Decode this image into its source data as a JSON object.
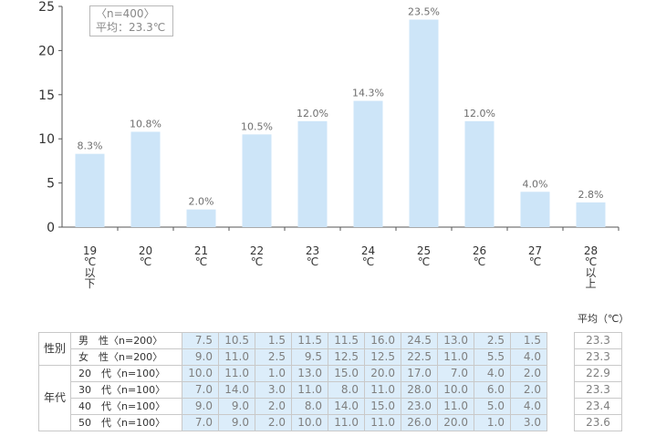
{
  "info": {
    "n_label": "〈n=400〉",
    "avg_label": "平均：23.3℃"
  },
  "chart_data": {
    "type": "bar",
    "categories": [
      "19 ℃ 以 下",
      "20 ℃",
      "21 ℃",
      "22 ℃",
      "23 ℃",
      "24 ℃",
      "25 ℃",
      "26 ℃",
      "27 ℃",
      "28 ℃ 以 上"
    ],
    "category_lines": [
      [
        "19",
        "℃",
        "以",
        "下"
      ],
      [
        "20",
        "℃"
      ],
      [
        "21",
        "℃"
      ],
      [
        "22",
        "℃"
      ],
      [
        "23",
        "℃"
      ],
      [
        "24",
        "℃"
      ],
      [
        "25",
        "℃"
      ],
      [
        "26",
        "℃"
      ],
      [
        "27",
        "℃"
      ],
      [
        "28",
        "℃",
        "以",
        "上"
      ]
    ],
    "values": [
      8.3,
      10.8,
      2.0,
      10.5,
      12.0,
      14.3,
      23.5,
      12.0,
      4.0,
      2.8
    ],
    "value_labels": [
      "8.3%",
      "10.8%",
      "2.0%",
      "10.5%",
      "12.0%",
      "14.3%",
      "23.5%",
      "12.0%",
      "4.0%",
      "2.8%"
    ],
    "y_ticks": [
      "0",
      "5",
      "10",
      "15",
      "20",
      "25"
    ],
    "ylim": [
      0,
      25
    ],
    "bar_color": "#cde5f8",
    "grid": false
  },
  "table": {
    "avg_header": "平均（℃）",
    "groups": [
      {
        "name": "性別",
        "rows": [
          {
            "label": "男　性〈n=200〉",
            "values": [
              "7.5",
              "10.5",
              "1.5",
              "11.5",
              "11.5",
              "16.0",
              "24.5",
              "13.0",
              "2.5",
              "1.5"
            ],
            "avg": "23.3"
          },
          {
            "label": "女　性〈n=200〉",
            "values": [
              "9.0",
              "11.0",
              "2.5",
              "9.5",
              "12.5",
              "12.5",
              "22.5",
              "11.0",
              "5.5",
              "4.0"
            ],
            "avg": "23.3"
          }
        ]
      },
      {
        "name": "年代",
        "rows": [
          {
            "label": "20　代〈n=100〉",
            "values": [
              "10.0",
              "11.0",
              "1.0",
              "13.0",
              "15.0",
              "20.0",
              "17.0",
              "7.0",
              "4.0",
              "2.0"
            ],
            "avg": "22.9"
          },
          {
            "label": "30　代〈n=100〉",
            "values": [
              "7.0",
              "14.0",
              "3.0",
              "11.0",
              "8.0",
              "11.0",
              "28.0",
              "10.0",
              "6.0",
              "2.0"
            ],
            "avg": "23.3"
          },
          {
            "label": "40　代〈n=100〉",
            "values": [
              "9.0",
              "9.0",
              "2.0",
              "8.0",
              "14.0",
              "15.0",
              "23.0",
              "11.0",
              "5.0",
              "4.0"
            ],
            "avg": "23.4"
          },
          {
            "label": "50　代〈n=100〉",
            "values": [
              "7.0",
              "9.0",
              "2.0",
              "10.0",
              "11.0",
              "11.0",
              "26.0",
              "20.0",
              "1.0",
              "3.0"
            ],
            "avg": "23.6"
          }
        ]
      }
    ]
  }
}
